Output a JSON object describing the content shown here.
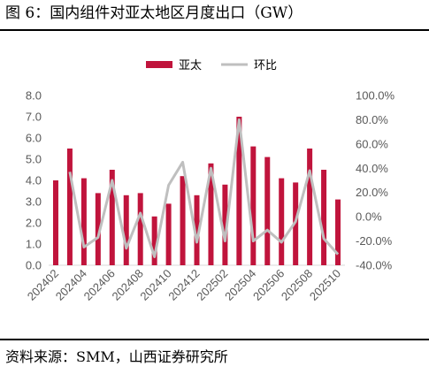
{
  "figure": {
    "title": "图 6：国内组件对亚太地区月度出口（GW）",
    "source": "资料来源：SMM，山西证券研究所"
  },
  "colors": {
    "bar": "#C0143C",
    "line": "#BFBFBF",
    "axis": "#595959"
  },
  "chart_data": {
    "type": "bar",
    "categories": [
      "202402",
      "202403",
      "202404",
      "202405",
      "202406",
      "202407",
      "202408",
      "202409",
      "202410",
      "202411",
      "202412",
      "202501",
      "202502",
      "202503",
      "202504",
      "202505",
      "202506",
      "202507",
      "202508",
      "202509",
      "202510"
    ],
    "x_tick_labels": [
      "202402",
      "202404",
      "202406",
      "202408",
      "202410",
      "202412",
      "202502",
      "202504",
      "202506",
      "202508",
      "202510"
    ],
    "series": [
      {
        "name": "亚太",
        "type": "bar",
        "axis": "left",
        "values": [
          4.0,
          5.5,
          4.1,
          3.4,
          4.5,
          3.3,
          3.4,
          2.3,
          2.9,
          4.2,
          3.3,
          4.8,
          3.8,
          7.0,
          5.6,
          5.1,
          4.1,
          3.9,
          5.5,
          4.5,
          3.1
        ]
      },
      {
        "name": "环比",
        "type": "line",
        "axis": "right",
        "values": [
          null,
          37.0,
          -25.0,
          -17.0,
          30.0,
          -26.0,
          3.0,
          -33.0,
          26.0,
          45.0,
          -21.0,
          40.0,
          -20.0,
          80.0,
          -20.0,
          -11.0,
          -21.0,
          -4.0,
          38.0,
          -18.0,
          -31.0
        ]
      }
    ],
    "y_left": {
      "min": 0,
      "max": 8,
      "step": 1,
      "tick_labels": [
        "0.0",
        "1.0",
        "2.0",
        "3.0",
        "4.0",
        "5.0",
        "6.0",
        "7.0",
        "8.0"
      ]
    },
    "y_right": {
      "min": -40,
      "max": 100,
      "step": 20,
      "tick_labels": [
        "-40.0%",
        "-20.0%",
        "0.0%",
        "20.0%",
        "40.0%",
        "60.0%",
        "80.0%",
        "100.0%"
      ]
    },
    "legend": {
      "position": "top-center",
      "entries": [
        "亚太",
        "环比"
      ]
    },
    "grid": false
  }
}
